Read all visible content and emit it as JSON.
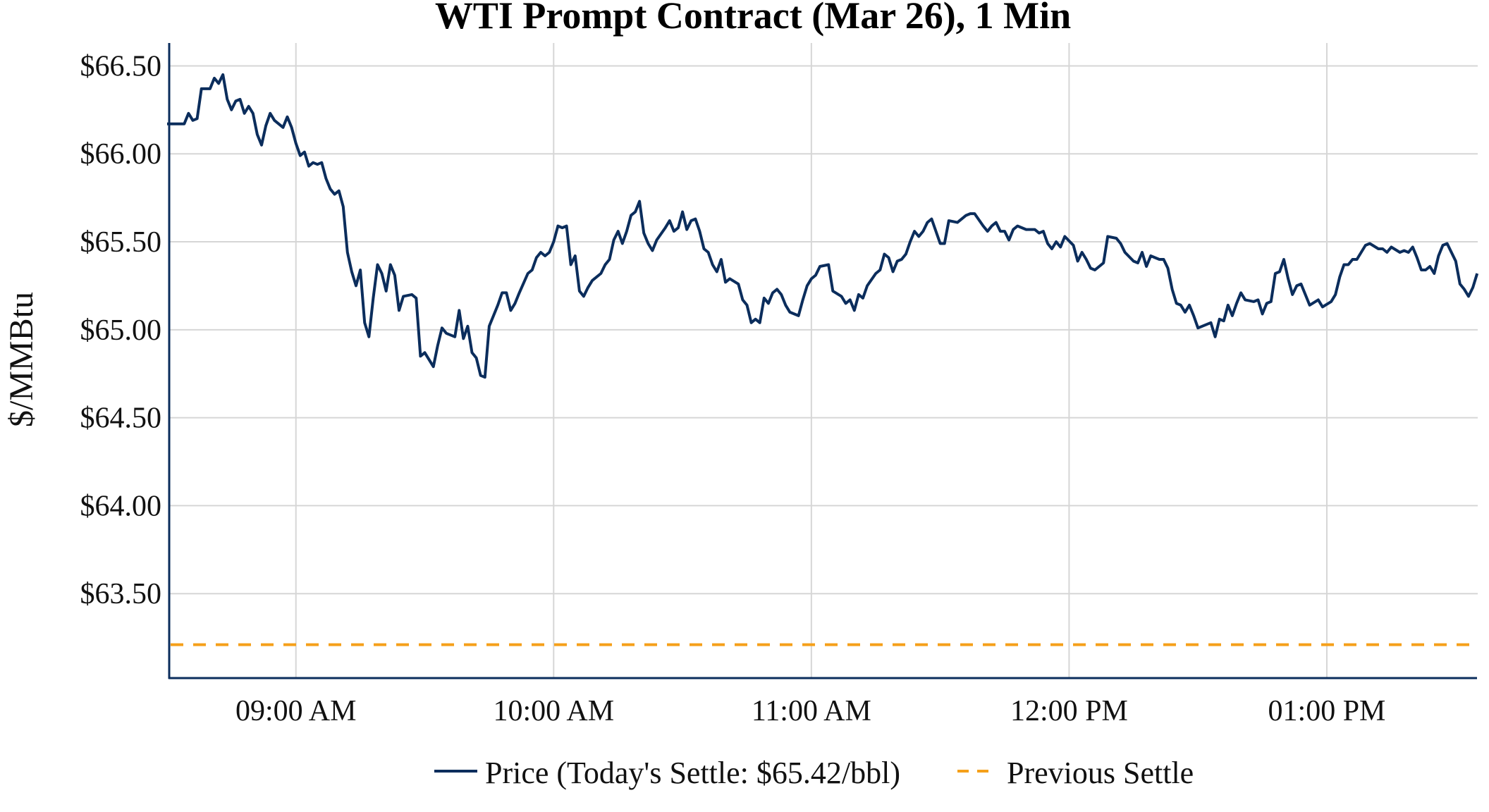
{
  "chart_data": {
    "type": "line",
    "title": "WTI Prompt Contract (Mar 26), 1 Min",
    "xlabel": "",
    "ylabel": "$/MMBtu",
    "xlim": [
      "08:30",
      "13:35"
    ],
    "ylim": [
      63.02,
      66.63
    ],
    "grid": true,
    "legend_position": "bottom",
    "y_ticks": [
      {
        "value": 66.5,
        "label": "$66.50"
      },
      {
        "value": 66.0,
        "label": "$66.00"
      },
      {
        "value": 65.5,
        "label": "$65.50"
      },
      {
        "value": 65.0,
        "label": "$65.00"
      },
      {
        "value": 64.5,
        "label": "$64.50"
      },
      {
        "value": 64.0,
        "label": "$64.00"
      },
      {
        "value": 63.5,
        "label": "$63.50"
      }
    ],
    "x_ticks": [
      {
        "value": "09:00",
        "label": "09:00 AM"
      },
      {
        "value": "10:00",
        "label": "10:00 AM"
      },
      {
        "value": "11:00",
        "label": "11:00 AM"
      },
      {
        "value": "12:00",
        "label": "12:00 PM"
      },
      {
        "value": "13:00",
        "label": "01:00 PM"
      }
    ],
    "series": [
      {
        "name": "Price (Today's Settle: $65.42/bbl)",
        "color": "#0b2d5c",
        "style": "solid",
        "points": [
          [
            "08:30",
            66.17
          ],
          [
            "08:34",
            66.17
          ],
          [
            "08:35",
            66.23
          ],
          [
            "08:36",
            66.19
          ],
          [
            "08:37",
            66.2
          ],
          [
            "08:38",
            66.37
          ],
          [
            "08:40",
            66.37
          ],
          [
            "08:41",
            66.43
          ],
          [
            "08:42",
            66.4
          ],
          [
            "08:43",
            66.45
          ],
          [
            "08:44",
            66.31
          ],
          [
            "08:45",
            66.25
          ],
          [
            "08:46",
            66.3
          ],
          [
            "08:47",
            66.31
          ],
          [
            "08:48",
            66.23
          ],
          [
            "08:49",
            66.27
          ],
          [
            "08:50",
            66.23
          ],
          [
            "08:51",
            66.11
          ],
          [
            "08:52",
            66.05
          ],
          [
            "08:53",
            66.16
          ],
          [
            "08:54",
            66.23
          ],
          [
            "08:55",
            66.19
          ],
          [
            "08:57",
            66.15
          ],
          [
            "08:58",
            66.21
          ],
          [
            "08:59",
            66.15
          ],
          [
            "09:00",
            66.06
          ],
          [
            "09:01",
            65.99
          ],
          [
            "09:02",
            66.01
          ],
          [
            "09:03",
            65.93
          ],
          [
            "09:04",
            65.95
          ],
          [
            "09:05",
            65.94
          ],
          [
            "09:06",
            65.95
          ],
          [
            "09:07",
            65.86
          ],
          [
            "09:08",
            65.8
          ],
          [
            "09:09",
            65.77
          ],
          [
            "09:10",
            65.79
          ],
          [
            "09:11",
            65.7
          ],
          [
            "09:12",
            65.44
          ],
          [
            "09:13",
            65.33
          ],
          [
            "09:14",
            65.25
          ],
          [
            "09:15",
            65.34
          ],
          [
            "09:16",
            65.04
          ],
          [
            "09:17",
            64.96
          ],
          [
            "09:18",
            65.18
          ],
          [
            "09:19",
            65.37
          ],
          [
            "09:20",
            65.32
          ],
          [
            "09:21",
            65.22
          ],
          [
            "09:22",
            65.37
          ],
          [
            "09:23",
            65.31
          ],
          [
            "09:24",
            65.11
          ],
          [
            "09:25",
            65.19
          ],
          [
            "09:27",
            65.2
          ],
          [
            "09:28",
            65.18
          ],
          [
            "09:29",
            64.85
          ],
          [
            "09:30",
            64.87
          ],
          [
            "09:32",
            64.79
          ],
          [
            "09:33",
            64.91
          ],
          [
            "09:34",
            65.01
          ],
          [
            "09:35",
            64.98
          ],
          [
            "09:37",
            64.96
          ],
          [
            "09:38",
            65.11
          ],
          [
            "09:39",
            64.95
          ],
          [
            "09:40",
            65.02
          ],
          [
            "09:41",
            64.87
          ],
          [
            "09:42",
            64.84
          ],
          [
            "09:43",
            64.74
          ],
          [
            "09:44",
            64.73
          ],
          [
            "09:45",
            65.02
          ],
          [
            "09:46",
            65.08
          ],
          [
            "09:47",
            65.14
          ],
          [
            "09:48",
            65.21
          ],
          [
            "09:49",
            65.21
          ],
          [
            "09:50",
            65.11
          ],
          [
            "09:51",
            65.15
          ],
          [
            "09:52",
            65.21
          ],
          [
            "09:54",
            65.32
          ],
          [
            "09:55",
            65.34
          ],
          [
            "09:56",
            65.41
          ],
          [
            "09:57",
            65.44
          ],
          [
            "09:58",
            65.42
          ],
          [
            "09:59",
            65.44
          ],
          [
            "10:00",
            65.5
          ],
          [
            "10:01",
            65.59
          ],
          [
            "10:02",
            65.58
          ],
          [
            "10:03",
            65.59
          ],
          [
            "10:04",
            65.37
          ],
          [
            "10:05",
            65.42
          ],
          [
            "10:06",
            65.22
          ],
          [
            "10:07",
            65.19
          ],
          [
            "10:08",
            65.24
          ],
          [
            "10:09",
            65.28
          ],
          [
            "10:11",
            65.32
          ],
          [
            "10:12",
            65.37
          ],
          [
            "10:13",
            65.4
          ],
          [
            "10:14",
            65.51
          ],
          [
            "10:15",
            65.56
          ],
          [
            "10:16",
            65.49
          ],
          [
            "10:17",
            65.56
          ],
          [
            "10:18",
            65.65
          ],
          [
            "10:19",
            65.67
          ],
          [
            "10:20",
            65.73
          ],
          [
            "10:21",
            65.55
          ],
          [
            "10:22",
            65.49
          ],
          [
            "10:23",
            65.45
          ],
          [
            "10:24",
            65.51
          ],
          [
            "10:26",
            65.58
          ],
          [
            "10:27",
            65.62
          ],
          [
            "10:28",
            65.56
          ],
          [
            "10:29",
            65.58
          ],
          [
            "10:30",
            65.67
          ],
          [
            "10:31",
            65.57
          ],
          [
            "10:32",
            65.62
          ],
          [
            "10:33",
            65.63
          ],
          [
            "10:34",
            65.56
          ],
          [
            "10:35",
            65.46
          ],
          [
            "10:36",
            65.44
          ],
          [
            "10:37",
            65.37
          ],
          [
            "10:38",
            65.33
          ],
          [
            "10:39",
            65.4
          ],
          [
            "10:40",
            65.27
          ],
          [
            "10:41",
            65.29
          ],
          [
            "10:43",
            65.26
          ],
          [
            "10:44",
            65.17
          ],
          [
            "10:45",
            65.14
          ],
          [
            "10:46",
            65.04
          ],
          [
            "10:47",
            65.06
          ],
          [
            "10:48",
            65.04
          ],
          [
            "10:49",
            65.18
          ],
          [
            "10:50",
            65.15
          ],
          [
            "10:51",
            65.21
          ],
          [
            "10:52",
            65.23
          ],
          [
            "10:53",
            65.2
          ],
          [
            "10:54",
            65.14
          ],
          [
            "10:55",
            65.1
          ],
          [
            "10:57",
            65.08
          ],
          [
            "10:58",
            65.17
          ],
          [
            "10:59",
            65.25
          ],
          [
            "11:00",
            65.29
          ],
          [
            "11:01",
            65.31
          ],
          [
            "11:02",
            65.36
          ],
          [
            "11:04",
            65.37
          ],
          [
            "11:05",
            65.22
          ],
          [
            "11:07",
            65.19
          ],
          [
            "11:08",
            65.15
          ],
          [
            "11:09",
            65.17
          ],
          [
            "11:10",
            65.11
          ],
          [
            "11:11",
            65.2
          ],
          [
            "11:12",
            65.18
          ],
          [
            "11:13",
            65.25
          ],
          [
            "11:15",
            65.32
          ],
          [
            "11:16",
            65.34
          ],
          [
            "11:17",
            65.43
          ],
          [
            "11:18",
            65.41
          ],
          [
            "11:19",
            65.33
          ],
          [
            "11:20",
            65.39
          ],
          [
            "11:21",
            65.4
          ],
          [
            "11:22",
            65.43
          ],
          [
            "11:23",
            65.5
          ],
          [
            "11:24",
            65.56
          ],
          [
            "11:25",
            65.53
          ],
          [
            "11:26",
            65.56
          ],
          [
            "11:27",
            65.61
          ],
          [
            "11:28",
            65.63
          ],
          [
            "11:30",
            65.49
          ],
          [
            "11:31",
            65.49
          ],
          [
            "11:32",
            65.62
          ],
          [
            "11:34",
            65.61
          ],
          [
            "11:36",
            65.65
          ],
          [
            "11:37",
            65.66
          ],
          [
            "11:38",
            65.66
          ],
          [
            "11:40",
            65.59
          ],
          [
            "11:41",
            65.56
          ],
          [
            "11:42",
            65.59
          ],
          [
            "11:43",
            65.61
          ],
          [
            "11:44",
            65.56
          ],
          [
            "11:45",
            65.56
          ],
          [
            "11:46",
            65.51
          ],
          [
            "11:47",
            65.57
          ],
          [
            "11:48",
            65.59
          ],
          [
            "11:50",
            65.57
          ],
          [
            "11:52",
            65.57
          ],
          [
            "11:53",
            65.55
          ],
          [
            "11:54",
            65.56
          ],
          [
            "11:55",
            65.49
          ],
          [
            "11:56",
            65.46
          ],
          [
            "11:57",
            65.5
          ],
          [
            "11:58",
            65.47
          ],
          [
            "11:59",
            65.53
          ],
          [
            "12:01",
            65.48
          ],
          [
            "12:02",
            65.39
          ],
          [
            "12:03",
            65.44
          ],
          [
            "12:04",
            65.4
          ],
          [
            "12:05",
            65.35
          ],
          [
            "12:06",
            65.34
          ],
          [
            "12:08",
            65.38
          ],
          [
            "12:09",
            65.53
          ],
          [
            "12:11",
            65.52
          ],
          [
            "12:12",
            65.49
          ],
          [
            "12:13",
            65.44
          ],
          [
            "12:15",
            65.39
          ],
          [
            "12:16",
            65.38
          ],
          [
            "12:17",
            65.44
          ],
          [
            "12:18",
            65.36
          ],
          [
            "12:19",
            65.42
          ],
          [
            "12:21",
            65.4
          ],
          [
            "12:22",
            65.4
          ],
          [
            "12:23",
            65.35
          ],
          [
            "12:24",
            65.23
          ],
          [
            "12:25",
            65.15
          ],
          [
            "12:26",
            65.14
          ],
          [
            "12:27",
            65.1
          ],
          [
            "12:28",
            65.14
          ],
          [
            "12:29",
            65.08
          ],
          [
            "12:30",
            65.01
          ],
          [
            "12:32",
            65.03
          ],
          [
            "12:33",
            65.04
          ],
          [
            "12:34",
            64.96
          ],
          [
            "12:35",
            65.06
          ],
          [
            "12:36",
            65.05
          ],
          [
            "12:37",
            65.14
          ],
          [
            "12:38",
            65.08
          ],
          [
            "12:39",
            65.15
          ],
          [
            "12:40",
            65.21
          ],
          [
            "12:41",
            65.17
          ],
          [
            "12:43",
            65.16
          ],
          [
            "12:44",
            65.17
          ],
          [
            "12:45",
            65.09
          ],
          [
            "12:46",
            65.15
          ],
          [
            "12:47",
            65.16
          ],
          [
            "12:48",
            65.32
          ],
          [
            "12:49",
            65.33
          ],
          [
            "12:50",
            65.4
          ],
          [
            "12:51",
            65.29
          ],
          [
            "12:52",
            65.2
          ],
          [
            "12:53",
            65.25
          ],
          [
            "12:54",
            65.26
          ],
          [
            "12:56",
            65.14
          ],
          [
            "12:58",
            65.17
          ],
          [
            "12:59",
            65.13
          ],
          [
            "13:01",
            65.16
          ],
          [
            "13:02",
            65.2
          ],
          [
            "13:03",
            65.3
          ],
          [
            "13:04",
            65.37
          ],
          [
            "13:05",
            65.37
          ],
          [
            "13:06",
            65.4
          ],
          [
            "13:07",
            65.4
          ],
          [
            "13:08",
            65.44
          ],
          [
            "13:09",
            65.48
          ],
          [
            "13:10",
            65.49
          ],
          [
            "13:12",
            65.46
          ],
          [
            "13:13",
            65.46
          ],
          [
            "13:14",
            65.44
          ],
          [
            "13:15",
            65.47
          ],
          [
            "13:17",
            65.44
          ],
          [
            "13:18",
            65.45
          ],
          [
            "13:19",
            65.44
          ],
          [
            "13:20",
            65.47
          ],
          [
            "13:21",
            65.41
          ],
          [
            "13:22",
            65.34
          ],
          [
            "13:23",
            65.34
          ],
          [
            "13:24",
            65.36
          ],
          [
            "13:25",
            65.32
          ],
          [
            "13:26",
            65.42
          ],
          [
            "13:27",
            65.48
          ],
          [
            "13:28",
            65.49
          ],
          [
            "13:29",
            65.44
          ],
          [
            "13:30",
            65.39
          ],
          [
            "13:31",
            65.26
          ],
          [
            "13:32",
            65.23
          ],
          [
            "13:33",
            65.19
          ],
          [
            "13:34",
            65.24
          ],
          [
            "13:35",
            65.32
          ]
        ]
      },
      {
        "name": "Previous Settle",
        "color": "#f5a01a",
        "style": "dashed",
        "value": 63.21
      }
    ]
  }
}
